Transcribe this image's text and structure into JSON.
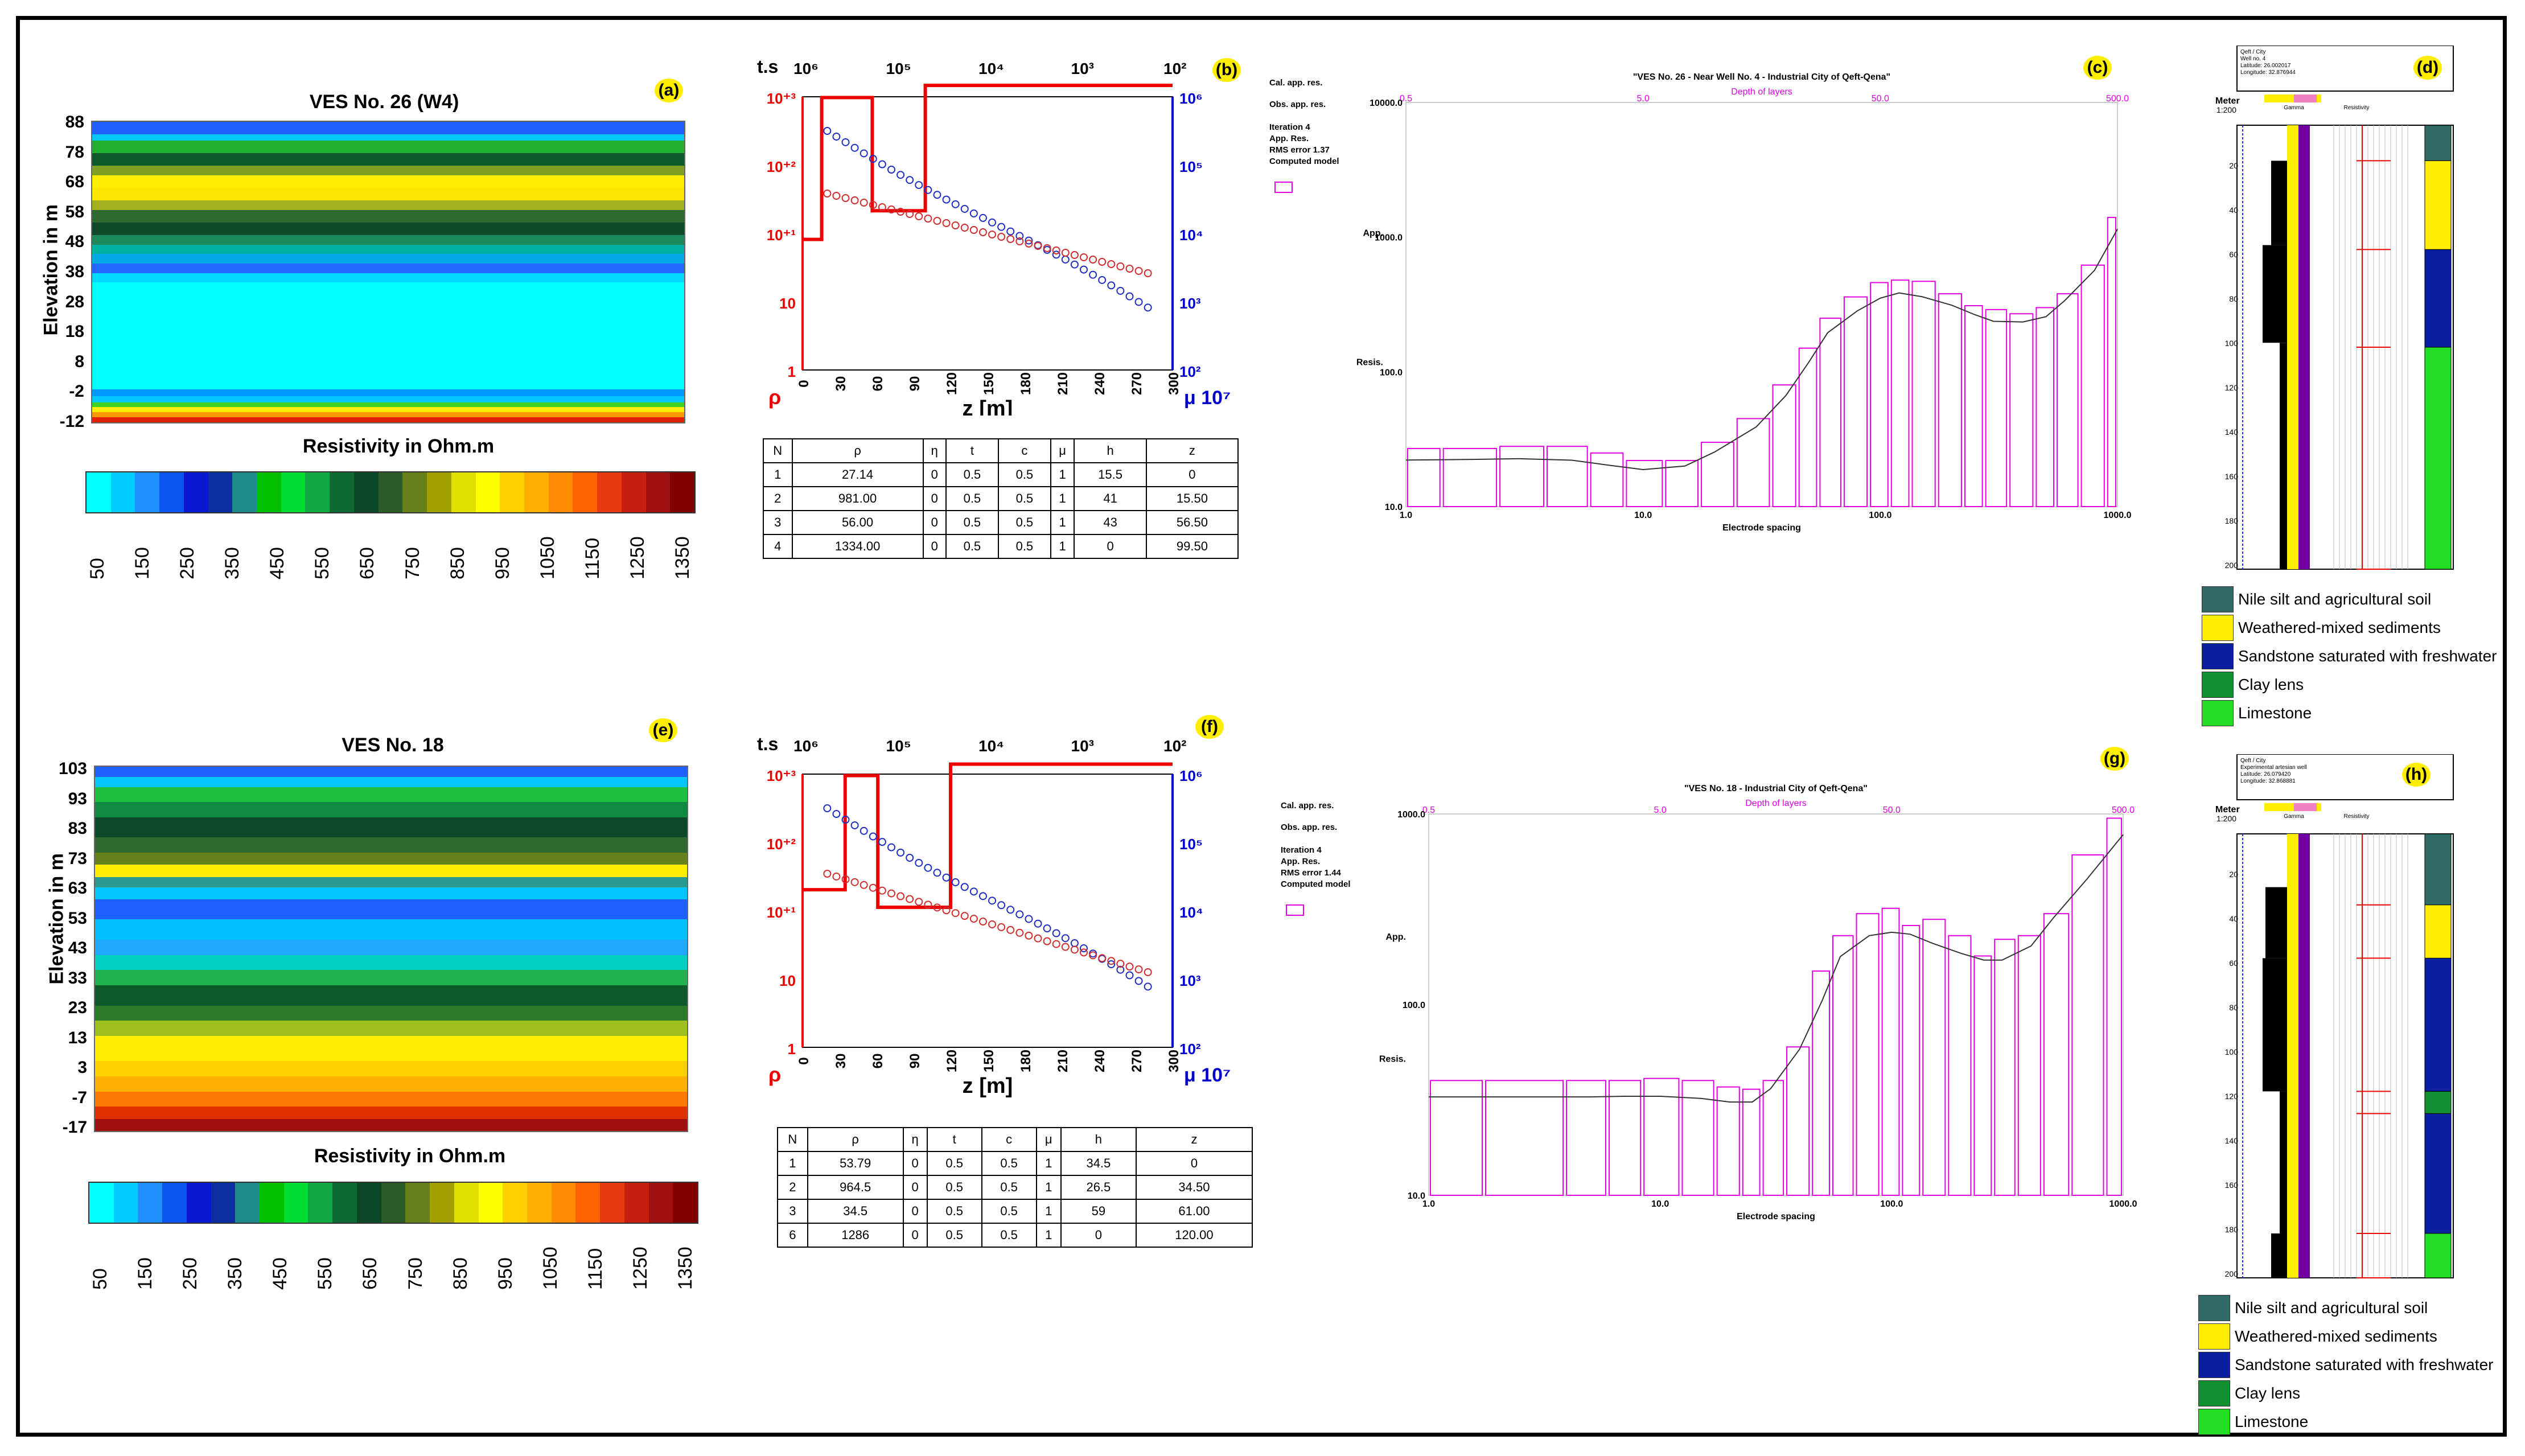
{
  "scale_ticks": [
    "50",
    "150",
    "250",
    "350",
    "450",
    "550",
    "650",
    "750",
    "850",
    "950",
    "1050",
    "1150",
    "1250",
    "1350"
  ],
  "scale_colors": [
    "#00ffff",
    "#00ccff",
    "#2090ff",
    "#0a54f0",
    "#0818d0",
    "#0b2ea0",
    "#1e8a8a",
    "#00c000",
    "#00dd33",
    "#10a840",
    "#0c6a32",
    "#0a4828",
    "#2e5c28",
    "#66801a",
    "#a0a000",
    "#e0e000",
    "#ffff00",
    "#ffd000",
    "#ffb000",
    "#ff8c00",
    "#ff6000",
    "#e83a10",
    "#c81e10",
    "#a01010",
    "#800000"
  ],
  "top": {
    "a": {
      "title": "VES No. 26 (W4)",
      "badge": "(a)",
      "ylabel": "Elevation in m",
      "xlabel": "Resistivity in Ohm.m",
      "yticks": [
        "88",
        "78",
        "68",
        "58",
        "48",
        "38",
        "28",
        "18",
        "8",
        "-2",
        "-12"
      ],
      "bands": [
        {
          "c": "#2060ff",
          "h": 2
        },
        {
          "c": "#00c8ff",
          "h": 1
        },
        {
          "c": "#20b030",
          "h": 2
        },
        {
          "c": "#0c5a2a",
          "h": 2
        },
        {
          "c": "#80a020",
          "h": 1.5
        },
        {
          "c": "#ffee00",
          "h": 2
        },
        {
          "c": "#ffe600",
          "h": 2
        },
        {
          "c": "#a0b020",
          "h": 1.5
        },
        {
          "c": "#2c6a30",
          "h": 2
        },
        {
          "c": "#0c4a28",
          "h": 2
        },
        {
          "c": "#1a8a5a",
          "h": 1.5
        },
        {
          "c": "#00b0a0",
          "h": 1.5
        },
        {
          "c": "#00a8e8",
          "h": 1.5
        },
        {
          "c": "#2068ff",
          "h": 1.5
        },
        {
          "c": "#00d8ff",
          "h": 1.5
        },
        {
          "c": "#00ffff",
          "h": 17
        },
        {
          "c": "#0098ff",
          "h": 1
        },
        {
          "c": "#00c8ff",
          "h": 1
        },
        {
          "c": "#40d020",
          "h": 0.8
        },
        {
          "c": "#ffee00",
          "h": 0.8
        },
        {
          "c": "#ff9900",
          "h": 0.8
        },
        {
          "c": "#e02000",
          "h": 0.8
        }
      ]
    },
    "b": {
      "badge": "(b)",
      "ts_label": "t.s",
      "rho_label": "ρ",
      "mu_label": "μ 10⁷",
      "z_label": "z [m]",
      "top_ticks": [
        "10⁶",
        "10⁵",
        "10⁴",
        "10³",
        "10²"
      ],
      "left_ticks": [
        "10⁺³",
        "10⁺²",
        "10⁺¹",
        "10",
        "1"
      ],
      "right_ticks": [
        "10⁶",
        "10⁵",
        "10⁴",
        "10³",
        "10²"
      ],
      "x_ticks": [
        "0",
        "30",
        "60",
        "90",
        "120",
        "150",
        "180",
        "210",
        "240",
        "270",
        "300"
      ]
    },
    "table": {
      "headers": [
        "N",
        "ρ",
        "η",
        "t",
        "c",
        "μ",
        "h",
        "z"
      ],
      "rows": [
        [
          "1",
          "27.14",
          "0",
          "0.5",
          "0.5",
          "1",
          "15.5",
          "0"
        ],
        [
          "2",
          "981.00",
          "0",
          "0.5",
          "0.5",
          "1",
          "41",
          "15.50"
        ],
        [
          "3",
          "56.00",
          "0",
          "0.5",
          "0.5",
          "1",
          "43",
          "56.50"
        ],
        [
          "4",
          "1334.00",
          "0",
          "0.5",
          "0.5",
          "1",
          "0",
          "99.50"
        ]
      ]
    },
    "c": {
      "badge": "(c)",
      "title": "\"VES No. 26 - Near Well No. 4 - Industrial City of Qeft-Qena\"",
      "depth_label": "Depth of layers",
      "depth_ticks": [
        "0.5",
        "5.0",
        "50.0",
        "500.0"
      ],
      "y_ticks": [
        "10000.0",
        "1000.0",
        "100.0",
        "10.0"
      ],
      "x_ticks": [
        "1.0",
        "10.0",
        "100.0",
        "1000.0"
      ],
      "xlabel": "Electrode spacing",
      "ylabel1": "App.",
      "ylabel2": "Resis.",
      "legend": [
        "Cal. app. res.",
        "Obs. app. res.",
        "Iteration 4",
        "App. Res.",
        "RMS error 1.37",
        "Computed model"
      ]
    },
    "d": {
      "badge": "(d)",
      "meter": "Meter",
      "scale": "1:200",
      "gamma": "Gamma",
      "res": "Resistivity",
      "hdr": [
        "Qeft / City",
        "Well no. 4",
        "Latitude: 26.002017",
        "Longitude: 32.876944"
      ],
      "depths": [
        "20",
        "40",
        "60",
        "80",
        "100",
        "120",
        "140",
        "160",
        "180",
        "200"
      ]
    }
  },
  "bottom": {
    "e": {
      "title": "VES No. 18",
      "badge": "(e)",
      "ylabel": "Elevation in m",
      "xlabel": "Resistivity in Ohm.m",
      "yticks": [
        "103",
        "93",
        "83",
        "73",
        "63",
        "53",
        "43",
        "33",
        "23",
        "13",
        "3",
        "-7",
        "-17"
      ],
      "bands": [
        {
          "c": "#2060ff",
          "h": 1
        },
        {
          "c": "#00c8ff",
          "h": 1
        },
        {
          "c": "#20c040",
          "h": 1.5
        },
        {
          "c": "#108a40",
          "h": 1.5
        },
        {
          "c": "#0a4a28",
          "h": 2
        },
        {
          "c": "#2c6a30",
          "h": 1.5
        },
        {
          "c": "#66801a",
          "h": 1.2
        },
        {
          "c": "#ffee00",
          "h": 1.2
        },
        {
          "c": "#2a9a90",
          "h": 1
        },
        {
          "c": "#00c8ff",
          "h": 1.2
        },
        {
          "c": "#1c60ff",
          "h": 2
        },
        {
          "c": "#00c0ff",
          "h": 2
        },
        {
          "c": "#20a8ff",
          "h": 1.5
        },
        {
          "c": "#00d0c0",
          "h": 1.5
        },
        {
          "c": "#20b050",
          "h": 1.5
        },
        {
          "c": "#0c5a2a",
          "h": 2
        },
        {
          "c": "#2a7a2a",
          "h": 1.5
        },
        {
          "c": "#a0c020",
          "h": 1.5
        },
        {
          "c": "#ffee00",
          "h": 2.5
        },
        {
          "c": "#ffd000",
          "h": 1.5
        },
        {
          "c": "#ffb000",
          "h": 1.5
        },
        {
          "c": "#ff7a00",
          "h": 1.5
        },
        {
          "c": "#e03000",
          "h": 1.2
        },
        {
          "c": "#a01010",
          "h": 1.2
        }
      ]
    },
    "f": {
      "badge": "(f)",
      "ts_label": "t.s",
      "rho_label": "ρ",
      "mu_label": "μ 10⁷",
      "z_label": "z [m]",
      "top_ticks": [
        "10⁶",
        "10⁵",
        "10⁴",
        "10³",
        "10²"
      ],
      "left_ticks": [
        "10⁺³",
        "10⁺²",
        "10⁺¹",
        "10",
        "1"
      ],
      "right_ticks": [
        "10⁶",
        "10⁵",
        "10⁴",
        "10³",
        "10²"
      ],
      "x_ticks": [
        "0",
        "30",
        "60",
        "90",
        "120",
        "150",
        "180",
        "210",
        "240",
        "270",
        "300"
      ]
    },
    "table": {
      "headers": [
        "N",
        "ρ",
        "η",
        "t",
        "c",
        "μ",
        "h",
        "z"
      ],
      "rows": [
        [
          "1",
          "53.79",
          "0",
          "0.5",
          "0.5",
          "1",
          "34.5",
          "0"
        ],
        [
          "2",
          "964.5",
          "0",
          "0.5",
          "0.5",
          "1",
          "26.5",
          "34.50"
        ],
        [
          "3",
          "34.5",
          "0",
          "0.5",
          "0.5",
          "1",
          "59",
          "61.00"
        ],
        [
          "6",
          "1286",
          "0",
          "0.5",
          "0.5",
          "1",
          "0",
          "120.00"
        ]
      ]
    },
    "g": {
      "badge": "(g)",
      "title": "\"VES No. 18 - Industrial City of Qeft-Qena\"",
      "depth_label": "Depth of layers",
      "depth_ticks": [
        "0.5",
        "5.0",
        "50.0",
        "500.0"
      ],
      "y_ticks": [
        "1000.0",
        "100.0",
        "10.0"
      ],
      "x_ticks": [
        "1.0",
        "10.0",
        "100.0",
        "1000.0"
      ],
      "xlabel": "Electrode spacing",
      "ylabel1": "App.",
      "ylabel2": "Resis.",
      "legend": [
        "Cal. app. res.",
        "Obs. app. res.",
        "Iteration 4",
        "App. Res.",
        "RMS error 1.44",
        "Computed model"
      ]
    },
    "h": {
      "badge": "(h)",
      "meter": "Meter",
      "scale": "1:200",
      "gamma": "Gamma",
      "res": "Resistivity",
      "hdr": [
        "Qeft / City",
        "Experimental artesian well",
        "Latitude: 26.079420",
        "Longitude: 32.868881"
      ],
      "depths": [
        "20",
        "40",
        "60",
        "80",
        "100",
        "120",
        "140",
        "160",
        "180",
        "200"
      ]
    }
  },
  "legend": [
    {
      "label": "Nile silt and agricultural soil",
      "color": "#2f6a66"
    },
    {
      "label": "Weathered-mixed sediments",
      "color": "#ffee00"
    },
    {
      "label": "Sandstone saturated with freshwater",
      "color": "#0a1ea0"
    },
    {
      "label": "Clay lens",
      "color": "#109030"
    },
    {
      "label": "Limestone",
      "color": "#22dd22"
    }
  ],
  "chart_data": [
    {
      "type": "heatmap",
      "title": "VES No. 26 (W4)",
      "ylabel": "Elevation in m",
      "xlabel": "Resistivity in Ohm.m",
      "ylim": [
        -12,
        88
      ]
    },
    {
      "type": "line",
      "ylabel": "ρ",
      "xlabel": "z [m]",
      "xlim": [
        0,
        300
      ],
      "series": [
        {
          "name": "ρ",
          "x": [
            0,
            15.5,
            15.5,
            56.5,
            56.5,
            99.5,
            99.5,
            300
          ],
          "y": [
            27.14,
            27.14,
            981,
            981,
            56,
            56,
            1334,
            1334
          ]
        }
      ]
    },
    {
      "type": "table",
      "headers": [
        "N",
        "ρ",
        "η",
        "t",
        "c",
        "μ",
        "h",
        "z"
      ],
      "rows": [
        [
          "1",
          "27.14",
          "0",
          "0.5",
          "0.5",
          "1",
          "15.5",
          "0"
        ],
        [
          "2",
          "981.00",
          "0",
          "0.5",
          "0.5",
          "1",
          "41",
          "15.50"
        ],
        [
          "3",
          "56.00",
          "0",
          "0.5",
          "0.5",
          "1",
          "43",
          "56.50"
        ],
        [
          "4",
          "1334.00",
          "0",
          "0.5",
          "0.5",
          "1",
          "0",
          "99.50"
        ]
      ]
    },
    {
      "type": "bar",
      "title": "\"VES No. 26 - Near Well No. 4 - Industrial City of Qeft-Qena\"",
      "xlabel": "Electrode spacing",
      "xlim": [
        1,
        1000
      ],
      "ylim": [
        10,
        10000
      ],
      "x": [
        1,
        2,
        3,
        5,
        7,
        10,
        15,
        20,
        30,
        40,
        50,
        60,
        80,
        100,
        120,
        150,
        200,
        250,
        300,
        400,
        500,
        600,
        800,
        1000
      ],
      "values": [
        27,
        27,
        28,
        28,
        25,
        22,
        22,
        30,
        45,
        80,
        150,
        250,
        360,
        460,
        480,
        470,
        380,
        310,
        290,
        270,
        300,
        380,
        620,
        1400
      ]
    },
    {
      "type": "heatmap",
      "title": "VES No. 18",
      "ylabel": "Elevation in m",
      "xlabel": "Resistivity in Ohm.m",
      "ylim": [
        -17,
        103
      ]
    },
    {
      "type": "line",
      "ylabel": "ρ",
      "xlabel": "z [m]",
      "xlim": [
        0,
        300
      ],
      "series": [
        {
          "name": "ρ",
          "x": [
            0,
            34.5,
            34.5,
            61,
            61,
            120,
            120,
            300
          ],
          "y": [
            53.79,
            53.79,
            964.5,
            964.5,
            34.5,
            34.5,
            1286,
            1286
          ]
        }
      ]
    },
    {
      "type": "table",
      "headers": [
        "N",
        "ρ",
        "η",
        "t",
        "c",
        "μ",
        "h",
        "z"
      ],
      "rows": [
        [
          "1",
          "53.79",
          "0",
          "0.5",
          "0.5",
          "1",
          "34.5",
          "0"
        ],
        [
          "2",
          "964.5",
          "0",
          "0.5",
          "0.5",
          "1",
          "26.5",
          "34.50"
        ],
        [
          "3",
          "34.5",
          "0",
          "0.5",
          "0.5",
          "1",
          "59",
          "61.00"
        ],
        [
          "6",
          "1286",
          "0",
          "0.5",
          "0.5",
          "1",
          "0",
          "120.00"
        ]
      ]
    },
    {
      "type": "bar",
      "title": "\"VES No. 18 - Industrial City of Qeft-Qena\"",
      "xlabel": "Electrode spacing",
      "xlim": [
        1,
        1000
      ],
      "ylim": [
        10,
        1000
      ],
      "x": [
        1,
        3,
        5,
        7,
        10,
        15,
        20,
        25,
        30,
        40,
        50,
        60,
        80,
        100,
        120,
        150,
        200,
        250,
        300,
        400,
        500,
        700,
        1000
      ],
      "values": [
        40,
        40,
        40,
        40,
        41,
        40,
        37,
        36,
        40,
        60,
        150,
        230,
        300,
        320,
        260,
        280,
        230,
        180,
        220,
        230,
        300,
        610,
        950
      ]
    }
  ]
}
